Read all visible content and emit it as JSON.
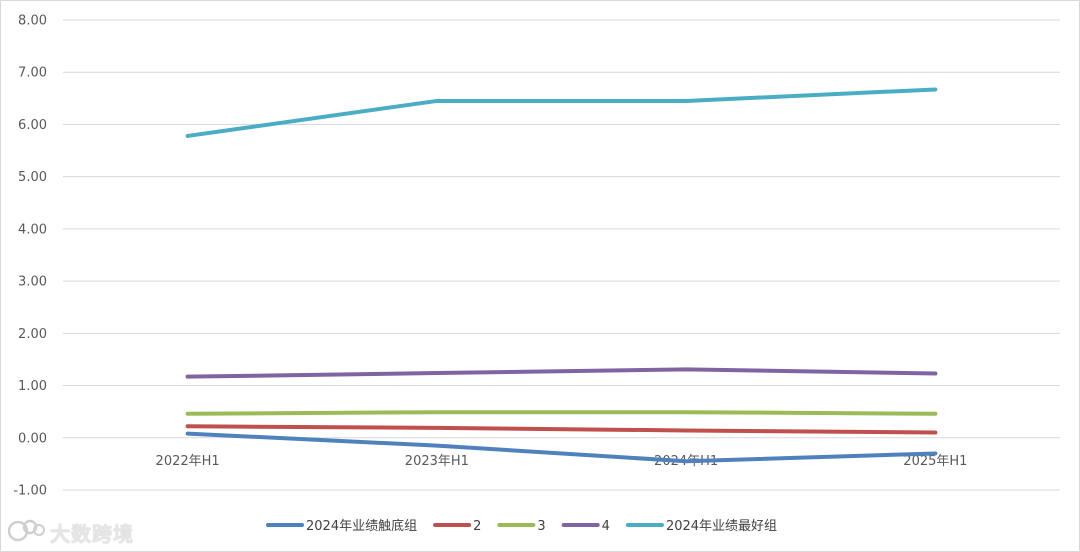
{
  "chart_data": {
    "type": "line",
    "categories": [
      "2022年H1",
      "2023年H1",
      "2024年H1",
      "2025年H1"
    ],
    "yticks": [
      "8.00",
      "7.00",
      "6.00",
      "5.00",
      "4.00",
      "3.00",
      "2.00",
      "1.00",
      "0.00",
      "-1.00"
    ],
    "ylim": [
      -1,
      8
    ],
    "grid": true,
    "legend_position": "bottom",
    "series": [
      {
        "name": "2024年业绩触底组",
        "color": "#4f81bd",
        "values": [
          0.08,
          -0.15,
          -0.45,
          -0.3
        ]
      },
      {
        "name": "2",
        "color": "#c0504d",
        "values": [
          0.22,
          0.19,
          0.14,
          0.1
        ]
      },
      {
        "name": "3",
        "color": "#9bbb59",
        "values": [
          0.46,
          0.49,
          0.49,
          0.46
        ]
      },
      {
        "name": "4",
        "color": "#8064a2",
        "values": [
          1.17,
          1.24,
          1.31,
          1.23
        ]
      },
      {
        "name": "2024年业绩最好组",
        "color": "#4bacc6",
        "values": [
          5.78,
          6.45,
          6.45,
          6.67
        ]
      }
    ]
  },
  "watermark": {
    "text": "大数跨境"
  }
}
